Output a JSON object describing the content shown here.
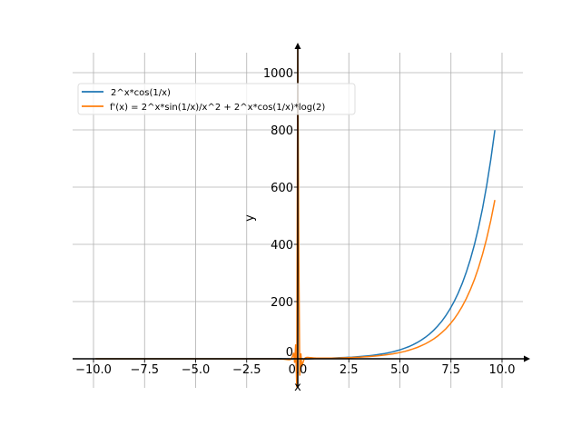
{
  "chart_data": {
    "type": "line",
    "title": "",
    "xlabel": "x",
    "ylabel": "y",
    "xlim": [
      -11,
      11
    ],
    "ylim": [
      -100,
      1070
    ],
    "xticks": [
      -10.0,
      -7.5,
      -5.0,
      -2.5,
      0.0,
      2.5,
      5.0,
      7.5,
      10.0
    ],
    "xtick_labels": [
      "−10.0",
      "−7.5",
      "−5.0",
      "−2.5",
      "0.0",
      "2.5",
      "5.0",
      "7.5",
      "10.0"
    ],
    "yticks": [
      0,
      200,
      400,
      600,
      800,
      1000
    ],
    "ytick_labels": [
      "0",
      "200",
      "400",
      "600",
      "800",
      "1000"
    ],
    "grid": true,
    "legend_position": "top-left",
    "sample_range": [
      -10,
      9.7
    ],
    "sample_step": 0.2,
    "series": [
      {
        "name": "2^x*cos(1/x)",
        "fn": "f",
        "color": "#1f77b4"
      },
      {
        "name": "f'(x) = 2^x*sin(1/x)/x^2 + 2^x*cos(1/x)*log(2)",
        "fn": "df",
        "color": "#ff7f0e"
      }
    ]
  }
}
